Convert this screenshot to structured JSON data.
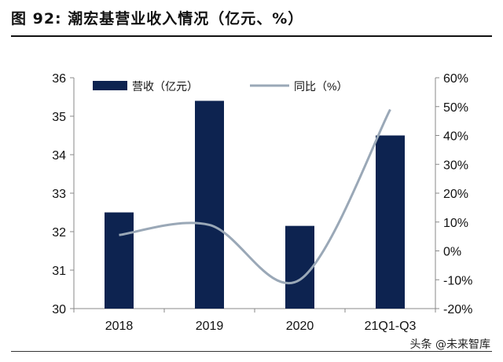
{
  "figure": {
    "title": "图 92:  潮宏基营业收入情况（亿元、%）",
    "watermark": "头条 @未来智库"
  },
  "colors": {
    "bar": "#0d2350",
    "line": "#9aa8b7",
    "axis": "#888888",
    "text": "#111111"
  },
  "chart_data": {
    "type": "bar",
    "categories": [
      "2018",
      "2019",
      "2020",
      "21Q1-Q3"
    ],
    "series": [
      {
        "name": "营收（亿元）",
        "type": "bar",
        "axis": "left",
        "values": [
          32.5,
          35.4,
          32.15,
          34.5
        ]
      },
      {
        "name": "同比（%）",
        "type": "line",
        "axis": "right",
        "values": [
          5.5,
          9.0,
          -10.0,
          49.0
        ]
      }
    ],
    "ylim_left": [
      30,
      36
    ],
    "yticks_left": [
      "30",
      "31",
      "32",
      "33",
      "34",
      "35",
      "36"
    ],
    "ylim_right": [
      -20,
      60
    ],
    "yticks_right": [
      "-20%",
      "-10%",
      "0%",
      "10%",
      "20%",
      "30%",
      "40%",
      "50%",
      "60%"
    ],
    "legend": "top",
    "grid": false
  }
}
